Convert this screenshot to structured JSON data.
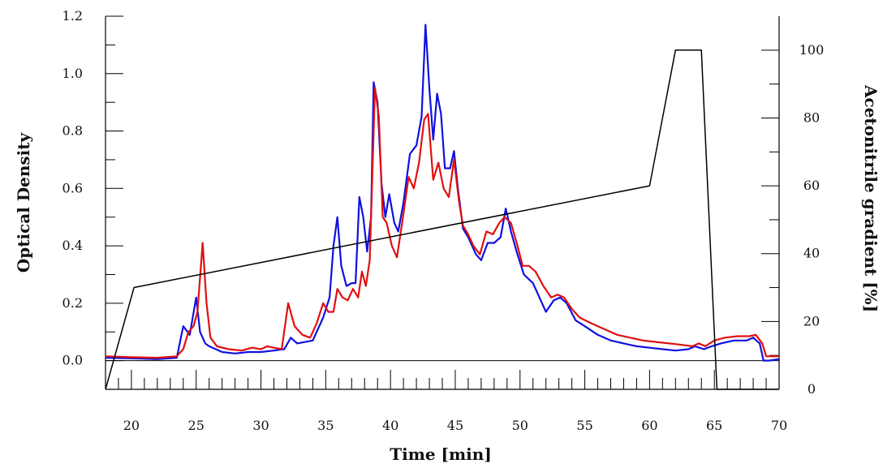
{
  "chart_data": {
    "type": "line",
    "xlabel": "Time [min]",
    "ylabel": "Optical Density",
    "y2label": "Acetonitrile gradient [%]",
    "xlim": [
      18,
      70
    ],
    "ylim": [
      -0.1,
      1.2
    ],
    "y2lim": [
      0,
      110
    ],
    "x_ticks": [
      20,
      25,
      30,
      35,
      40,
      45,
      50,
      55,
      60,
      65,
      70
    ],
    "y_ticks": [
      "0.0",
      "0.2",
      "0.4",
      "0.6",
      "0.8",
      "1.0",
      "1.2"
    ],
    "y2_ticks": [
      "0",
      "20",
      "40",
      "60",
      "80",
      "100"
    ],
    "colors": {
      "blue": "#1010e0",
      "red": "#e01010",
      "gradient": "#000000"
    },
    "series": [
      {
        "axis": "left",
        "color": "#1010e0",
        "points": [
          [
            18,
            0.01
          ],
          [
            20,
            0.008
          ],
          [
            22,
            0.005
          ],
          [
            23.5,
            0.01
          ],
          [
            24,
            0.12
          ],
          [
            24.5,
            0.09
          ],
          [
            25,
            0.22
          ],
          [
            25.3,
            0.1
          ],
          [
            25.7,
            0.06
          ],
          [
            26,
            0.05
          ],
          [
            27,
            0.03
          ],
          [
            28,
            0.025
          ],
          [
            29,
            0.03
          ],
          [
            30,
            0.03
          ],
          [
            31,
            0.035
          ],
          [
            31.8,
            0.04
          ],
          [
            32.3,
            0.08
          ],
          [
            32.8,
            0.06
          ],
          [
            34,
            0.07
          ],
          [
            34.8,
            0.15
          ],
          [
            35.3,
            0.22
          ],
          [
            35.6,
            0.4
          ],
          [
            35.9,
            0.5
          ],
          [
            36.2,
            0.33
          ],
          [
            36.6,
            0.26
          ],
          [
            37,
            0.27
          ],
          [
            37.3,
            0.27
          ],
          [
            37.6,
            0.57
          ],
          [
            37.9,
            0.5
          ],
          [
            38.2,
            0.38
          ],
          [
            38.5,
            0.5
          ],
          [
            38.7,
            0.97
          ],
          [
            39,
            0.9
          ],
          [
            39.3,
            0.62
          ],
          [
            39.6,
            0.5
          ],
          [
            39.9,
            0.58
          ],
          [
            40.3,
            0.48
          ],
          [
            40.6,
            0.45
          ],
          [
            41,
            0.55
          ],
          [
            41.5,
            0.72
          ],
          [
            42,
            0.75
          ],
          [
            42.4,
            0.85
          ],
          [
            42.7,
            1.17
          ],
          [
            43,
            0.95
          ],
          [
            43.3,
            0.77
          ],
          [
            43.6,
            0.93
          ],
          [
            43.9,
            0.86
          ],
          [
            44.2,
            0.67
          ],
          [
            44.6,
            0.67
          ],
          [
            44.9,
            0.73
          ],
          [
            45.2,
            0.6
          ],
          [
            45.6,
            0.46
          ],
          [
            46,
            0.43
          ],
          [
            46.6,
            0.37
          ],
          [
            47,
            0.35
          ],
          [
            47.5,
            0.41
          ],
          [
            48,
            0.41
          ],
          [
            48.5,
            0.43
          ],
          [
            48.9,
            0.53
          ],
          [
            49.3,
            0.45
          ],
          [
            49.8,
            0.37
          ],
          [
            50.3,
            0.3
          ],
          [
            51,
            0.27
          ],
          [
            51.5,
            0.22
          ],
          [
            52,
            0.17
          ],
          [
            52.6,
            0.21
          ],
          [
            53.1,
            0.22
          ],
          [
            53.6,
            0.2
          ],
          [
            54.3,
            0.14
          ],
          [
            55,
            0.12
          ],
          [
            56,
            0.09
          ],
          [
            57,
            0.07
          ],
          [
            58,
            0.06
          ],
          [
            59,
            0.05
          ],
          [
            60,
            0.045
          ],
          [
            61,
            0.04
          ],
          [
            62,
            0.035
          ],
          [
            63,
            0.04
          ],
          [
            63.5,
            0.05
          ],
          [
            64.2,
            0.04
          ],
          [
            64.8,
            0.05
          ],
          [
            65.5,
            0.06
          ],
          [
            66.5,
            0.07
          ],
          [
            67.5,
            0.07
          ],
          [
            68,
            0.08
          ],
          [
            68.5,
            0.06
          ],
          [
            68.8,
            0.0
          ],
          [
            69.2,
            0.0
          ],
          [
            70,
            0.005
          ]
        ]
      },
      {
        "axis": "left",
        "color": "#e01010",
        "points": [
          [
            18,
            0.015
          ],
          [
            20,
            0.012
          ],
          [
            22,
            0.01
          ],
          [
            23.5,
            0.015
          ],
          [
            24,
            0.04
          ],
          [
            24.4,
            0.1
          ],
          [
            24.8,
            0.12
          ],
          [
            25.1,
            0.17
          ],
          [
            25.5,
            0.41
          ],
          [
            25.8,
            0.2
          ],
          [
            26.1,
            0.08
          ],
          [
            26.6,
            0.05
          ],
          [
            27.5,
            0.04
          ],
          [
            28.5,
            0.035
          ],
          [
            29.3,
            0.045
          ],
          [
            30,
            0.04
          ],
          [
            30.5,
            0.05
          ],
          [
            31,
            0.045
          ],
          [
            31.6,
            0.04
          ],
          [
            32.1,
            0.2
          ],
          [
            32.6,
            0.12
          ],
          [
            33.2,
            0.09
          ],
          [
            33.8,
            0.08
          ],
          [
            34.3,
            0.13
          ],
          [
            34.8,
            0.2
          ],
          [
            35.2,
            0.17
          ],
          [
            35.6,
            0.17
          ],
          [
            35.9,
            0.25
          ],
          [
            36.3,
            0.22
          ],
          [
            36.7,
            0.21
          ],
          [
            37.1,
            0.25
          ],
          [
            37.5,
            0.22
          ],
          [
            37.8,
            0.31
          ],
          [
            38.1,
            0.26
          ],
          [
            38.4,
            0.35
          ],
          [
            38.8,
            0.95
          ],
          [
            39.1,
            0.85
          ],
          [
            39.4,
            0.5
          ],
          [
            39.7,
            0.48
          ],
          [
            40.1,
            0.4
          ],
          [
            40.5,
            0.36
          ],
          [
            40.9,
            0.48
          ],
          [
            41.4,
            0.64
          ],
          [
            41.8,
            0.6
          ],
          [
            42.2,
            0.69
          ],
          [
            42.6,
            0.84
          ],
          [
            42.9,
            0.86
          ],
          [
            43.3,
            0.63
          ],
          [
            43.7,
            0.69
          ],
          [
            44.1,
            0.6
          ],
          [
            44.5,
            0.57
          ],
          [
            44.9,
            0.7
          ],
          [
            45.3,
            0.55
          ],
          [
            45.6,
            0.47
          ],
          [
            46,
            0.44
          ],
          [
            46.4,
            0.4
          ],
          [
            46.9,
            0.37
          ],
          [
            47.4,
            0.45
          ],
          [
            47.9,
            0.44
          ],
          [
            48.4,
            0.48
          ],
          [
            48.8,
            0.5
          ],
          [
            49.3,
            0.48
          ],
          [
            49.8,
            0.4
          ],
          [
            50.2,
            0.33
          ],
          [
            50.7,
            0.33
          ],
          [
            51.2,
            0.31
          ],
          [
            51.8,
            0.26
          ],
          [
            52.4,
            0.22
          ],
          [
            52.9,
            0.23
          ],
          [
            53.4,
            0.22
          ],
          [
            54,
            0.18
          ],
          [
            54.6,
            0.15
          ],
          [
            55.5,
            0.13
          ],
          [
            56.5,
            0.11
          ],
          [
            57.5,
            0.09
          ],
          [
            58.5,
            0.08
          ],
          [
            59.5,
            0.07
          ],
          [
            60.5,
            0.065
          ],
          [
            61.5,
            0.06
          ],
          [
            62.5,
            0.055
          ],
          [
            63.3,
            0.05
          ],
          [
            63.8,
            0.06
          ],
          [
            64.3,
            0.05
          ],
          [
            65,
            0.07
          ],
          [
            65.8,
            0.08
          ],
          [
            66.8,
            0.085
          ],
          [
            67.7,
            0.085
          ],
          [
            68.2,
            0.09
          ],
          [
            68.7,
            0.06
          ],
          [
            69,
            0.015
          ],
          [
            70,
            0.015
          ]
        ]
      },
      {
        "axis": "right",
        "color": "#000000",
        "points": [
          [
            18,
            0
          ],
          [
            20.2,
            30
          ],
          [
            60,
            60
          ],
          [
            62,
            100
          ],
          [
            64,
            100
          ],
          [
            65.2,
            0
          ],
          [
            70,
            0
          ]
        ]
      }
    ]
  }
}
